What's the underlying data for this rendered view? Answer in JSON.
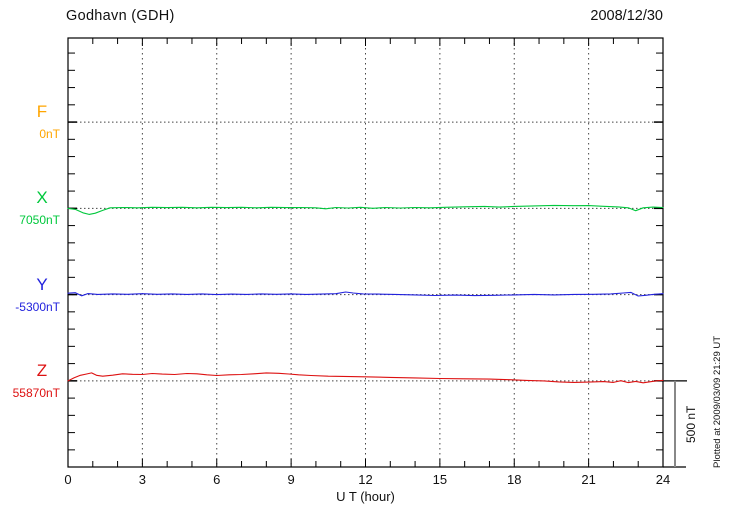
{
  "header": {
    "title": "Godhavn (GDH)",
    "date": "2008/12/30"
  },
  "axis": {
    "xlabel": "U T (hour)",
    "x_tick_labels": [
      "0",
      "3",
      "6",
      "9",
      "12",
      "15",
      "18",
      "21",
      "24"
    ]
  },
  "scale_bar": {
    "label": "500 nT",
    "value_nT": 500
  },
  "footer_note": "Plotted at 2009/03/09 21:29 UT",
  "colors": {
    "F": "#FFA500",
    "X": "#00C83C",
    "Y": "#2222DD",
    "Z": "#DD1111",
    "frame": "#000000",
    "grid": "#444444",
    "scalebar": "#888888"
  },
  "chart_data": {
    "type": "line",
    "title": "Godhavn (GDH)",
    "date": "2008/12/30",
    "xlabel": "U T (hour)",
    "x_range_hours": [
      0,
      24
    ],
    "x_major_ticks": [
      0,
      3,
      6,
      9,
      12,
      15,
      18,
      21,
      24
    ],
    "x_minor_tick_step_hours": 1,
    "y_minor_tick_step_nT": 100,
    "scale_bar_nT": 500,
    "grid": "dotted vertical lines every 3 hours; dotted horizontal baseline per component",
    "legend_position": "left margin, one label per trace baseline",
    "series": [
      {
        "name": "F",
        "baseline_label": "0nT",
        "baseline_nT": 0,
        "color": "#FFA500",
        "points_hour_offsetnT": []
      },
      {
        "name": "X",
        "baseline_label": "7050nT",
        "baseline_nT": 7050,
        "color": "#00C83C",
        "points_hour_offsetnT": [
          [
            0,
            0
          ],
          [
            0.3,
            -6
          ],
          [
            0.6,
            -26
          ],
          [
            0.85,
            -35
          ],
          [
            1.1,
            -28
          ],
          [
            1.4,
            -12
          ],
          [
            1.7,
            3
          ],
          [
            2.2,
            5
          ],
          [
            2.8,
            3
          ],
          [
            3.4,
            6
          ],
          [
            4,
            4
          ],
          [
            4.6,
            6
          ],
          [
            5.2,
            3
          ],
          [
            5.8,
            6
          ],
          [
            6.4,
            4
          ],
          [
            7,
            6
          ],
          [
            7.6,
            3
          ],
          [
            8.2,
            6
          ],
          [
            8.8,
            4
          ],
          [
            9.4,
            5
          ],
          [
            10,
            3
          ],
          [
            10.4,
            -3
          ],
          [
            10.8,
            5
          ],
          [
            11.3,
            2
          ],
          [
            11.8,
            6
          ],
          [
            12.3,
            0
          ],
          [
            12.8,
            5
          ],
          [
            13.4,
            2
          ],
          [
            14,
            5
          ],
          [
            14.6,
            3
          ],
          [
            15.2,
            6
          ],
          [
            16,
            9
          ],
          [
            16.8,
            11
          ],
          [
            17.4,
            7
          ],
          [
            18,
            11
          ],
          [
            18.8,
            14
          ],
          [
            19.6,
            17
          ],
          [
            20.4,
            15
          ],
          [
            21,
            16
          ],
          [
            21.6,
            12
          ],
          [
            22.2,
            8
          ],
          [
            22.6,
            3
          ],
          [
            22.9,
            -14
          ],
          [
            23.2,
            3
          ],
          [
            23.6,
            7
          ],
          [
            24,
            5
          ]
        ]
      },
      {
        "name": "Y",
        "baseline_label": "-5300nT",
        "baseline_nT": -5300,
        "color": "#2222DD",
        "points_hour_offsetnT": [
          [
            0,
            8
          ],
          [
            0.3,
            11
          ],
          [
            0.55,
            -7
          ],
          [
            0.8,
            6
          ],
          [
            1.2,
            1
          ],
          [
            1.8,
            4
          ],
          [
            2.4,
            2
          ],
          [
            3,
            5
          ],
          [
            3.6,
            2
          ],
          [
            4.2,
            4
          ],
          [
            4.8,
            1
          ],
          [
            5.4,
            4
          ],
          [
            6,
            0
          ],
          [
            6.6,
            3
          ],
          [
            7.2,
            1
          ],
          [
            7.8,
            4
          ],
          [
            8.4,
            2
          ],
          [
            9,
            4
          ],
          [
            9.6,
            1
          ],
          [
            10.2,
            3
          ],
          [
            10.8,
            5
          ],
          [
            11.2,
            15
          ],
          [
            11.5,
            9
          ],
          [
            11.9,
            4
          ],
          [
            12.5,
            3
          ],
          [
            13.2,
            1
          ],
          [
            14,
            -2
          ],
          [
            14.8,
            -5
          ],
          [
            15.6,
            -3
          ],
          [
            16.4,
            -6
          ],
          [
            17.2,
            -4
          ],
          [
            18,
            -2
          ],
          [
            18.8,
            1
          ],
          [
            19.6,
            -2
          ],
          [
            20.4,
            1
          ],
          [
            21.2,
            2
          ],
          [
            21.9,
            4
          ],
          [
            22.4,
            9
          ],
          [
            22.7,
            13
          ],
          [
            23,
            -8
          ],
          [
            23.3,
            -4
          ],
          [
            23.6,
            1
          ],
          [
            24,
            5
          ]
        ]
      },
      {
        "name": "Z",
        "baseline_label": "55870nT",
        "baseline_nT": 55870,
        "color": "#DD1111",
        "points_hour_offsetnT": [
          [
            0,
            0
          ],
          [
            0.25,
            18
          ],
          [
            0.5,
            32
          ],
          [
            0.75,
            40
          ],
          [
            0.95,
            46
          ],
          [
            1.15,
            32
          ],
          [
            1.4,
            27
          ],
          [
            1.8,
            33
          ],
          [
            2.2,
            41
          ],
          [
            2.6,
            38
          ],
          [
            3,
            37
          ],
          [
            3.4,
            43
          ],
          [
            3.8,
            39
          ],
          [
            4.3,
            37
          ],
          [
            4.8,
            43
          ],
          [
            5.2,
            41
          ],
          [
            5.6,
            35
          ],
          [
            6,
            31
          ],
          [
            6.5,
            35
          ],
          [
            7,
            37
          ],
          [
            7.5,
            41
          ],
          [
            8,
            46
          ],
          [
            8.5,
            44
          ],
          [
            8.9,
            40
          ],
          [
            9.3,
            35
          ],
          [
            9.8,
            31
          ],
          [
            10.5,
            27
          ],
          [
            11.4,
            25
          ],
          [
            12.2,
            23
          ],
          [
            13,
            20
          ],
          [
            14,
            17
          ],
          [
            15,
            14
          ],
          [
            16,
            12
          ],
          [
            17,
            10
          ],
          [
            17.8,
            7
          ],
          [
            18.5,
            3
          ],
          [
            19.2,
            0
          ],
          [
            19.8,
            -6
          ],
          [
            20.4,
            -9
          ],
          [
            21,
            -7
          ],
          [
            21.6,
            -4
          ],
          [
            22,
            -9
          ],
          [
            22.3,
            1
          ],
          [
            22.6,
            -10
          ],
          [
            22.9,
            -3
          ],
          [
            23.2,
            -11
          ],
          [
            23.5,
            -5
          ],
          [
            23.8,
            1
          ],
          [
            24,
            3
          ]
        ]
      }
    ]
  }
}
